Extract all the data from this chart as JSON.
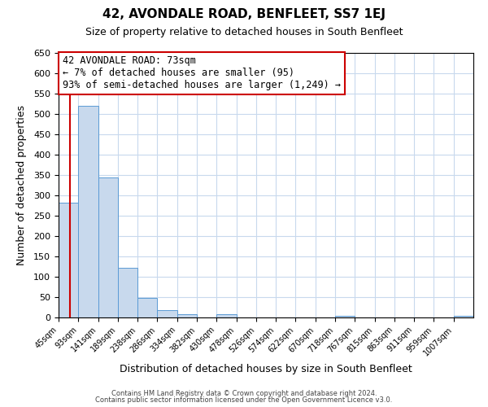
{
  "title": "42, AVONDALE ROAD, BENFLEET, SS7 1EJ",
  "subtitle": "Size of property relative to detached houses in South Benfleet",
  "xlabel": "Distribution of detached houses by size in South Benfleet",
  "ylabel": "Number of detached properties",
  "bin_labels": [
    "45sqm",
    "93sqm",
    "141sqm",
    "189sqm",
    "238sqm",
    "286sqm",
    "334sqm",
    "382sqm",
    "430sqm",
    "478sqm",
    "526sqm",
    "574sqm",
    "622sqm",
    "670sqm",
    "718sqm",
    "767sqm",
    "815sqm",
    "863sqm",
    "911sqm",
    "959sqm",
    "1007sqm"
  ],
  "bar_values": [
    283,
    521,
    345,
    122,
    48,
    18,
    8,
    1,
    8,
    0,
    1,
    0,
    0,
    0,
    5,
    0,
    0,
    0,
    0,
    0,
    5
  ],
  "bar_color": "#c8d9ed",
  "bar_edge_color": "#5b9bd5",
  "ylim": [
    0,
    650
  ],
  "yticks": [
    0,
    50,
    100,
    150,
    200,
    250,
    300,
    350,
    400,
    450,
    500,
    550,
    600,
    650
  ],
  "property_line_x": 73,
  "annotation_title": "42 AVONDALE ROAD: 73sqm",
  "annotation_line1": "← 7% of detached houses are smaller (95)",
  "annotation_line2": "93% of semi-detached houses are larger (1,249) →",
  "annotation_box_color": "#ffffff",
  "annotation_box_edge": "#cc0000",
  "red_line_color": "#cc0000",
  "footer1": "Contains HM Land Registry data © Crown copyright and database right 2024.",
  "footer2": "Contains public sector information licensed under the Open Government Licence v3.0.",
  "background_color": "#ffffff",
  "grid_color": "#c8d9ed"
}
